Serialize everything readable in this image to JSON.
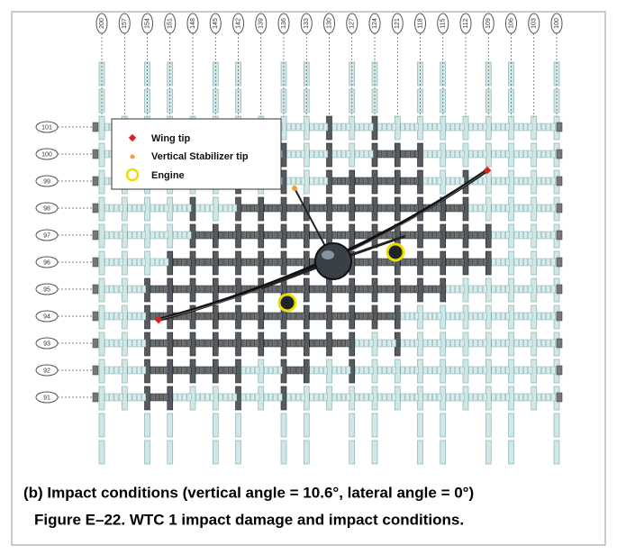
{
  "column_labels": [
    "200",
    "157",
    "154",
    "151",
    "148",
    "145",
    "142",
    "139",
    "136",
    "133",
    "130",
    "127",
    "124",
    "121",
    "118",
    "115",
    "112",
    "109",
    "106",
    "103",
    "100"
  ],
  "floor_labels": [
    "101",
    "100",
    "99",
    "98",
    "97",
    "96",
    "95",
    "94",
    "93",
    "92",
    "91"
  ],
  "legend": {
    "items": [
      "Wing tip",
      "Vertical Stabilizer tip",
      "Engine"
    ]
  },
  "caption": {
    "subtitle": "(b) Impact conditions (vertical angle = 10.6°, lateral angle = 0°)",
    "figure": "Figure E–22.  WTC 1 impact damage and impact conditions."
  }
}
